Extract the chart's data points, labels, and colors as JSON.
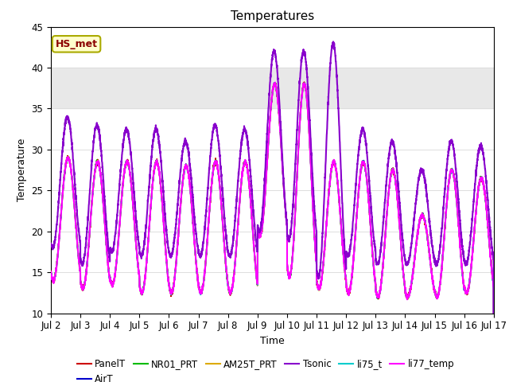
{
  "title": "Temperatures",
  "xlabel": "Time",
  "ylabel": "Temperature",
  "xlim_start": 0,
  "xlim_end": 15,
  "ylim": [
    10,
    45
  ],
  "yticks": [
    10,
    15,
    20,
    25,
    30,
    35,
    40,
    45
  ],
  "xtick_labels": [
    "Jul 2",
    "Jul 3",
    "Jul 4",
    "Jul 5",
    "Jul 6",
    "Jul 7",
    "Jul 8",
    "Jul 9",
    "Jul 10",
    "Jul 11",
    "Jul 12",
    "Jul 13",
    "Jul 14",
    "Jul 15",
    "Jul 16",
    "Jul 17"
  ],
  "xtick_positions": [
    0,
    1,
    2,
    3,
    4,
    5,
    6,
    7,
    8,
    9,
    10,
    11,
    12,
    13,
    14,
    15
  ],
  "series_order": [
    "PanelT",
    "AirT",
    "NR01_PRT",
    "AM25T_PRT",
    "Tsonic",
    "li75_t",
    "li77_temp"
  ],
  "series": {
    "PanelT": {
      "color": "#cc0000",
      "lw": 1.2,
      "zorder": 3
    },
    "AirT": {
      "color": "#0000cc",
      "lw": 1.2,
      "zorder": 3
    },
    "NR01_PRT": {
      "color": "#00bb00",
      "lw": 1.2,
      "zorder": 3
    },
    "AM25T_PRT": {
      "color": "#ddaa00",
      "lw": 1.2,
      "zorder": 3
    },
    "Tsonic": {
      "color": "#8800cc",
      "lw": 1.5,
      "zorder": 4
    },
    "li75_t": {
      "color": "#00cccc",
      "lw": 1.2,
      "zorder": 3
    },
    "li77_temp": {
      "color": "#ff00ff",
      "lw": 1.5,
      "zorder": 3
    }
  },
  "shaded_band": [
    35,
    40
  ],
  "shaded_color": "#e8e8e8",
  "annotation_text": "HS_met",
  "background_color": "#ffffff",
  "grid_color": "#dddddd",
  "title_fontsize": 11,
  "axis_fontsize": 9,
  "tick_fontsize": 8.5,
  "legend_fontsize": 8.5,
  "peaks_base": [
    29,
    28.5,
    28.5,
    28.5,
    28,
    28.5,
    28.5,
    38,
    38,
    28.5,
    28.5,
    27.5,
    22,
    27.5,
    26.5,
    16.5
  ],
  "troughs_base": [
    14,
    13,
    13.5,
    12.5,
    12.5,
    12.5,
    12.5,
    19.5,
    14.5,
    13,
    12.5,
    12,
    12,
    12,
    12.5,
    12.5
  ],
  "peaks_tsonic": [
    34,
    33,
    32.5,
    32.5,
    31,
    33,
    32.5,
    42,
    42,
    43,
    32.5,
    31,
    27.5,
    31,
    30.5,
    17
  ],
  "troughs_tsonic": [
    18,
    16,
    17.5,
    17,
    17,
    17,
    17,
    20,
    19,
    14.5,
    17,
    16,
    16,
    16,
    16,
    16
  ]
}
